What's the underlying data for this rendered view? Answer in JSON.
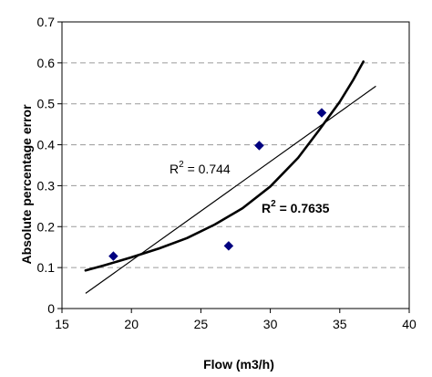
{
  "chart_data": {
    "type": "scatter",
    "xlabel": "Flow (m3/h)",
    "ylabel": "Absolute percentage error",
    "xlim": [
      15,
      40
    ],
    "ylim": [
      0,
      0.7
    ],
    "xticks": [
      "15",
      "20",
      "25",
      "30",
      "35",
      "40"
    ],
    "yticks": [
      "0",
      "0.1",
      "0.2",
      "0.3",
      "0.4",
      "0.5",
      "0.6",
      "0.7"
    ],
    "grid": "horizontal dashed",
    "series": [
      {
        "marker": "diamond",
        "color": "#000080",
        "x": [
          18.7,
          27.0,
          29.2,
          33.7
        ],
        "y": [
          0.128,
          0.153,
          0.398,
          0.478
        ]
      }
    ],
    "trendlines": [
      {
        "kind": "linear",
        "x_range": [
          16.7,
          37.6
        ],
        "y_range": [
          0.037,
          0.543
        ],
        "label_prefix": "R",
        "label_exponent": "2",
        "label_value": " = 0.744"
      },
      {
        "kind": "curved",
        "x": [
          16.7,
          18.0,
          20.0,
          22.0,
          24.0,
          26.0,
          28.0,
          30.0,
          32.0,
          33.5,
          35.0,
          36.0,
          36.7
        ],
        "y": [
          0.093,
          0.105,
          0.125,
          0.147,
          0.172,
          0.205,
          0.245,
          0.298,
          0.368,
          0.435,
          0.505,
          0.56,
          0.603
        ],
        "label_prefix": "R",
        "label_exponent": "2",
        "label_value": " = 0.7635"
      }
    ]
  }
}
